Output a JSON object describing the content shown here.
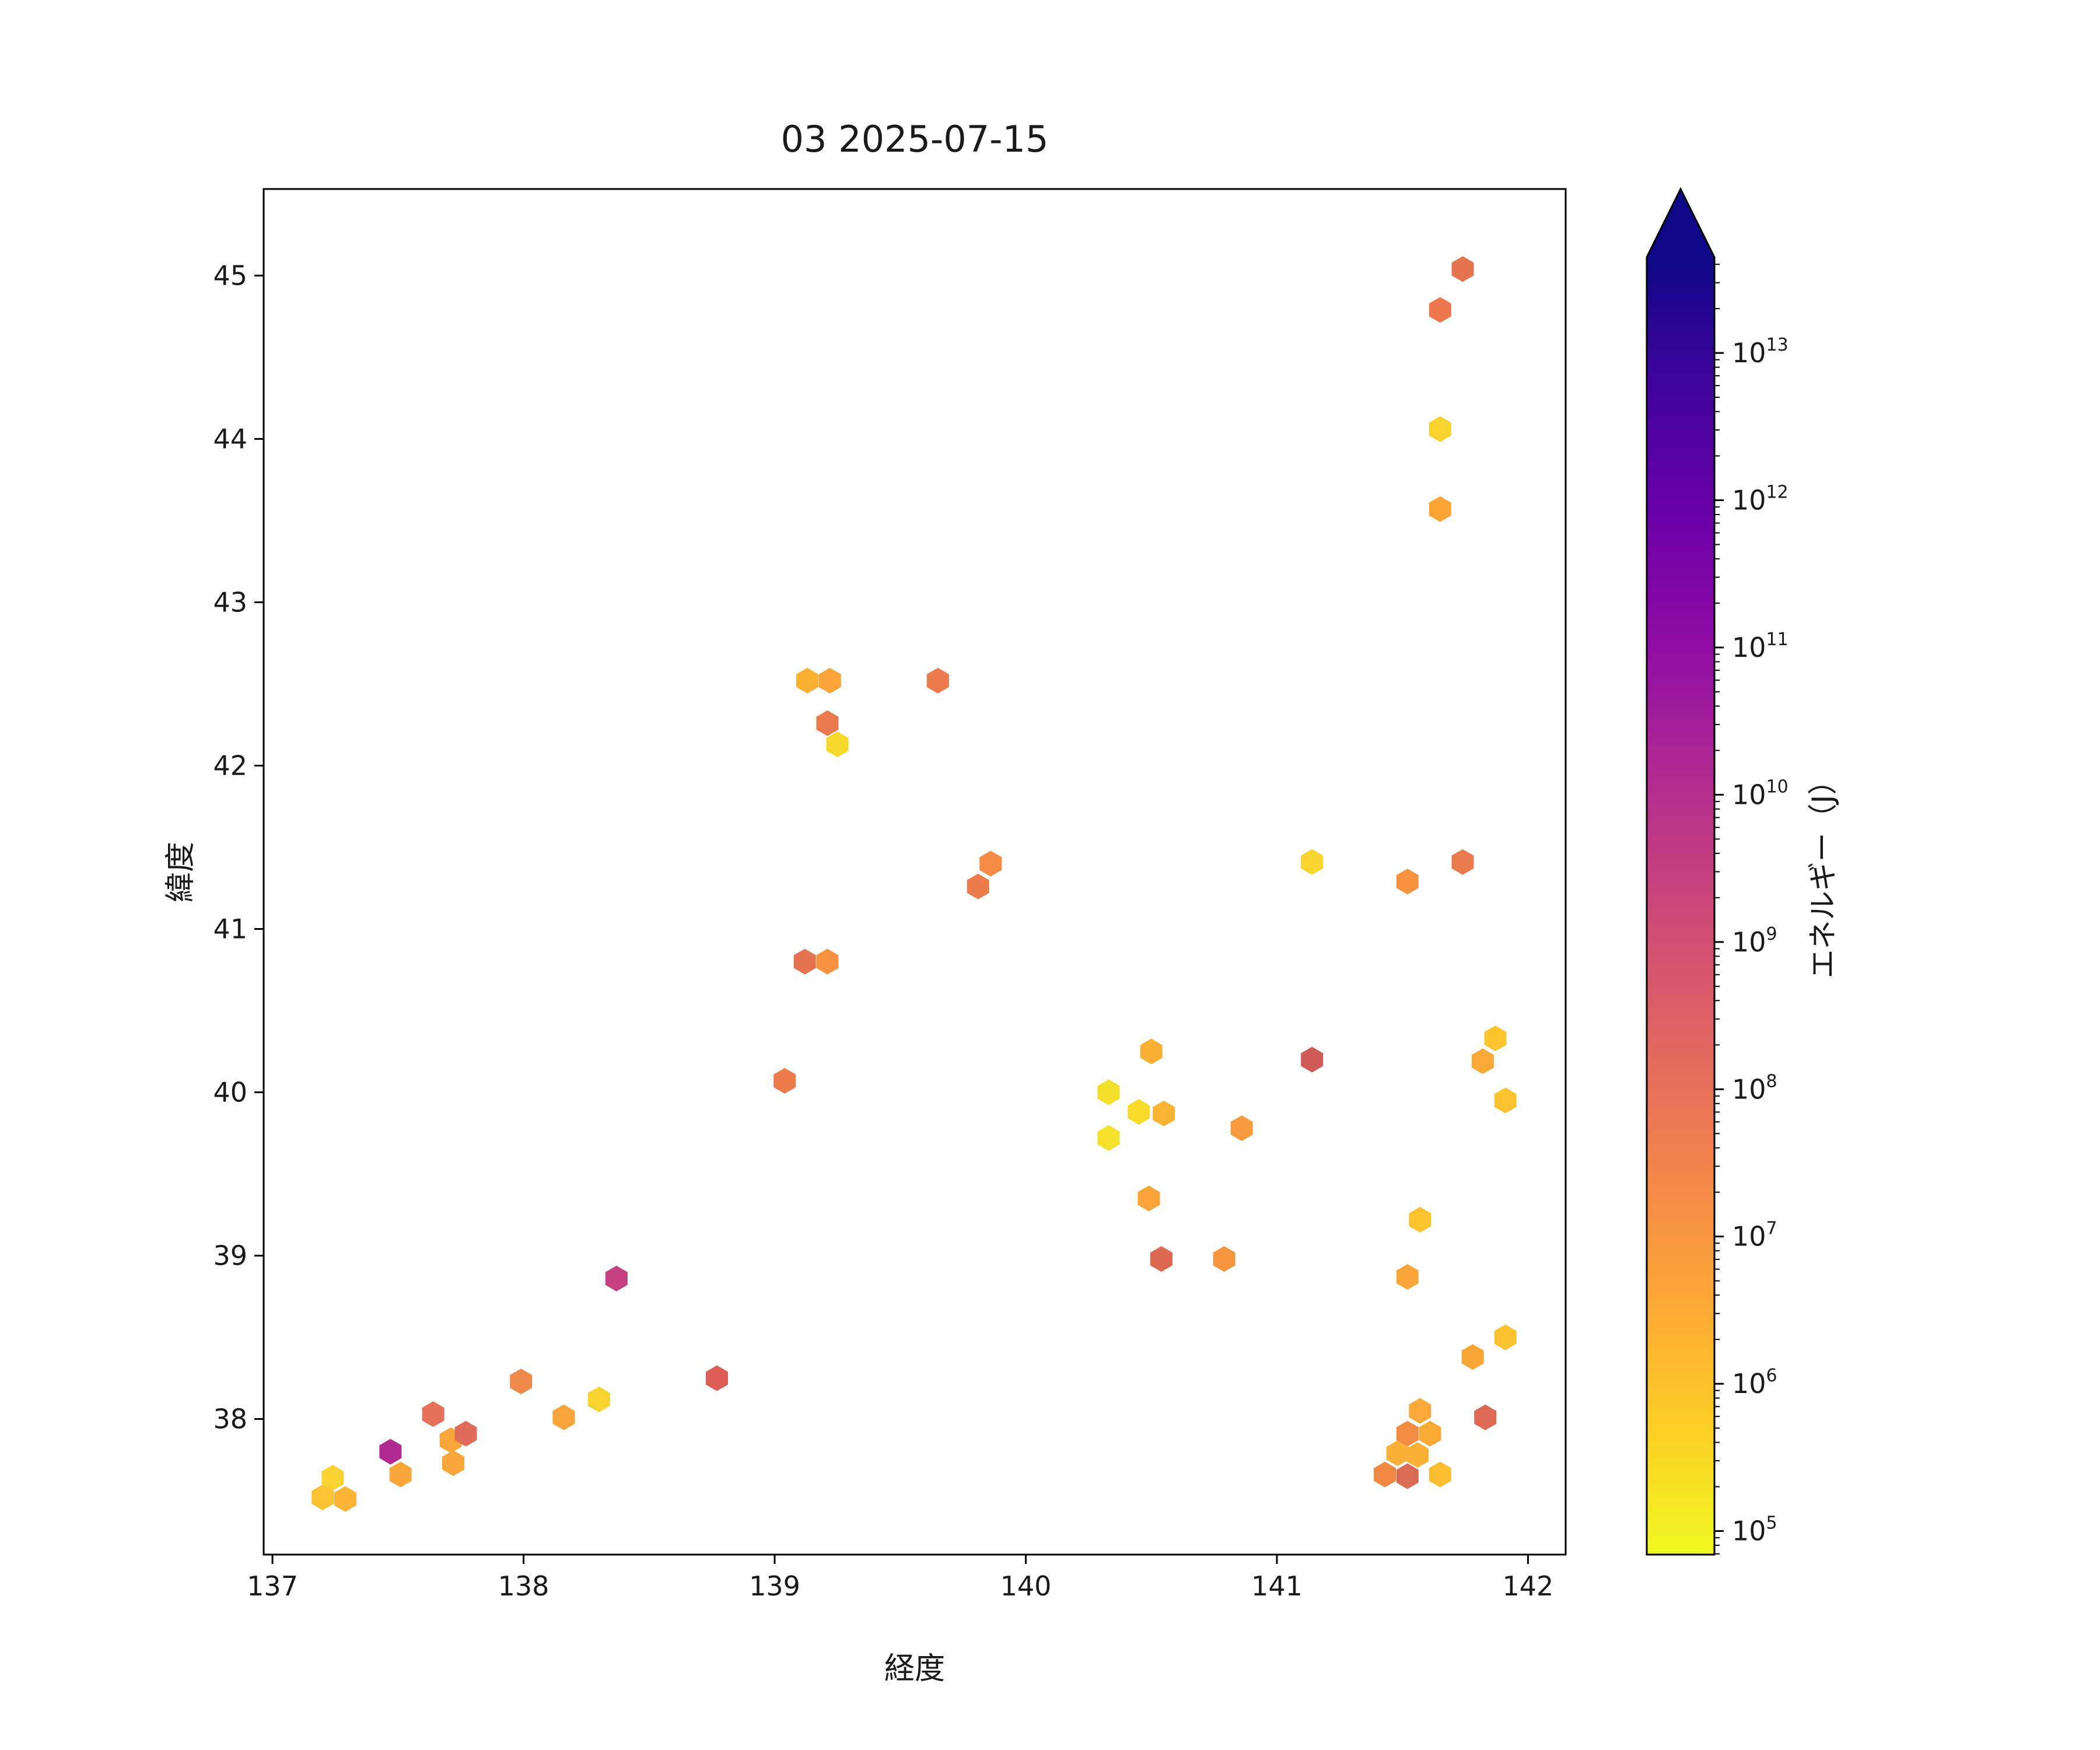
{
  "chart_data": {
    "type": "scatter",
    "subtype": "hexbin",
    "title": "03 2025-07-15",
    "xlabel": "経度",
    "ylabel": "緯度",
    "xlim": [
      136.965,
      142.15
    ],
    "ylim": [
      37.17,
      45.53
    ],
    "xticks": [
      137,
      138,
      139,
      140,
      141,
      142
    ],
    "yticks": [
      38,
      39,
      40,
      41,
      42,
      43,
      44,
      45
    ],
    "grid": false,
    "background": "#ffffff",
    "frame_color": "#000000",
    "points": [
      {
        "lon": 137.2,
        "lat": 37.52,
        "energy_j": 1000000.0,
        "color": "#fbc332"
      },
      {
        "lon": 137.29,
        "lat": 37.51,
        "energy_j": 2500000.0,
        "color": "#fbb435"
      },
      {
        "lon": 137.24,
        "lat": 37.64,
        "energy_j": 500000.0,
        "color": "#f8d231"
      },
      {
        "lon": 137.47,
        "lat": 37.8,
        "energy_j": 13000000000.0,
        "color": "#b02a90"
      },
      {
        "lon": 137.51,
        "lat": 37.66,
        "energy_j": 5000000.0,
        "color": "#f9a63b"
      },
      {
        "lon": 137.64,
        "lat": 38.03,
        "energy_j": 80000000.0,
        "color": "#e4705a"
      },
      {
        "lon": 137.71,
        "lat": 37.87,
        "energy_j": 5000000.0,
        "color": "#f9a63b"
      },
      {
        "lon": 137.77,
        "lat": 37.91,
        "energy_j": 100000000.0,
        "color": "#e06c5a"
      },
      {
        "lon": 137.72,
        "lat": 37.73,
        "energy_j": 5000000.0,
        "color": "#f9a63b"
      },
      {
        "lon": 137.99,
        "lat": 38.23,
        "energy_j": 20000000.0,
        "color": "#f08a4b"
      },
      {
        "lon": 138.16,
        "lat": 38.01,
        "energy_j": 6000000.0,
        "color": "#f8a43c"
      },
      {
        "lon": 138.3,
        "lat": 38.12,
        "energy_j": 500000.0,
        "color": "#f6d32e"
      },
      {
        "lon": 138.37,
        "lat": 38.86,
        "energy_j": 1200000000.0,
        "color": "#c5407e"
      },
      {
        "lon": 138.77,
        "lat": 38.25,
        "energy_j": 200000000.0,
        "color": "#dc5e56"
      },
      {
        "lon": 139.13,
        "lat": 42.52,
        "energy_j": 3000000.0,
        "color": "#fbb032"
      },
      {
        "lon": 139.22,
        "lat": 42.52,
        "energy_j": 5000000.0,
        "color": "#f9a338"
      },
      {
        "lon": 139.65,
        "lat": 42.52,
        "energy_j": 50000000.0,
        "color": "#ed7a4c"
      },
      {
        "lon": 139.21,
        "lat": 42.26,
        "energy_j": 50000000.0,
        "color": "#e87a4d"
      },
      {
        "lon": 139.25,
        "lat": 42.13,
        "energy_j": 400000.0,
        "color": "#f7d92c"
      },
      {
        "lon": 139.86,
        "lat": 41.4,
        "energy_j": 20000000.0,
        "color": "#f58a43"
      },
      {
        "lon": 139.81,
        "lat": 41.26,
        "energy_j": 40000000.0,
        "color": "#ec7c4c"
      },
      {
        "lon": 139.12,
        "lat": 40.8,
        "energy_j": 80000000.0,
        "color": "#e4714f"
      },
      {
        "lon": 139.21,
        "lat": 40.8,
        "energy_j": 15000000.0,
        "color": "#f5913f"
      },
      {
        "lon": 139.04,
        "lat": 40.07,
        "energy_j": 50000000.0,
        "color": "#ee7b4b"
      },
      {
        "lon": 140.5,
        "lat": 40.25,
        "energy_j": 3000000.0,
        "color": "#fbaf33"
      },
      {
        "lon": 140.33,
        "lat": 40.0,
        "energy_j": 200000.0,
        "color": "#f4e02a"
      },
      {
        "lon": 140.45,
        "lat": 39.88,
        "energy_j": 300000.0,
        "color": "#f7dd2a"
      },
      {
        "lon": 140.55,
        "lat": 39.87,
        "energy_j": 2500000.0,
        "color": "#fbb431"
      },
      {
        "lon": 140.33,
        "lat": 39.72,
        "energy_j": 200000.0,
        "color": "#f5e02a"
      },
      {
        "lon": 140.86,
        "lat": 39.78,
        "energy_j": 8000000.0,
        "color": "#f79b3e"
      },
      {
        "lon": 141.14,
        "lat": 41.41,
        "energy_j": 500000.0,
        "color": "#f8d52e"
      },
      {
        "lon": 141.52,
        "lat": 41.29,
        "energy_j": 15000000.0,
        "color": "#f7913e"
      },
      {
        "lon": 141.74,
        "lat": 41.41,
        "energy_j": 40000000.0,
        "color": "#ea7b4e"
      },
      {
        "lon": 141.14,
        "lat": 40.2,
        "energy_j": 250000000.0,
        "color": "#d05a58"
      },
      {
        "lon": 141.87,
        "lat": 40.33,
        "energy_j": 1000000.0,
        "color": "#fcc42d"
      },
      {
        "lon": 141.82,
        "lat": 40.19,
        "energy_j": 4000000.0,
        "color": "#faa836"
      },
      {
        "lon": 141.91,
        "lat": 39.95,
        "energy_j": 1000000.0,
        "color": "#fcc32e"
      },
      {
        "lon": 140.49,
        "lat": 39.35,
        "energy_j": 5000000.0,
        "color": "#faa338"
      },
      {
        "lon": 140.54,
        "lat": 38.98,
        "energy_j": 150000000.0,
        "color": "#dd6851"
      },
      {
        "lon": 140.79,
        "lat": 38.98,
        "energy_j": 12000000.0,
        "color": "#f6953e"
      },
      {
        "lon": 141.57,
        "lat": 39.22,
        "energy_j": 1000000.0,
        "color": "#fcc32e"
      },
      {
        "lon": 141.52,
        "lat": 38.87,
        "energy_j": 4000000.0,
        "color": "#faa639"
      },
      {
        "lon": 141.91,
        "lat": 38.5,
        "energy_j": 1000000.0,
        "color": "#fcc12f"
      },
      {
        "lon": 141.78,
        "lat": 38.38,
        "energy_j": 4000000.0,
        "color": "#faa637"
      },
      {
        "lon": 141.83,
        "lat": 38.01,
        "energy_j": 150000000.0,
        "color": "#dd6853"
      },
      {
        "lon": 141.57,
        "lat": 38.05,
        "energy_j": 4000000.0,
        "color": "#f9a93a"
      },
      {
        "lon": 141.52,
        "lat": 37.91,
        "energy_j": 20000000.0,
        "color": "#f28c42"
      },
      {
        "lon": 141.61,
        "lat": 37.91,
        "energy_j": 3500000.0,
        "color": "#fbab34"
      },
      {
        "lon": 141.48,
        "lat": 37.79,
        "energy_j": 3000000.0,
        "color": "#fbb135"
      },
      {
        "lon": 141.56,
        "lat": 37.78,
        "energy_j": 3000000.0,
        "color": "#fbb135"
      },
      {
        "lon": 141.43,
        "lat": 37.66,
        "energy_j": 25000000.0,
        "color": "#f08844"
      },
      {
        "lon": 141.52,
        "lat": 37.65,
        "energy_j": 120000000.0,
        "color": "#d96a54"
      },
      {
        "lon": 141.65,
        "lat": 37.66,
        "energy_j": 1500000.0,
        "color": "#fcbd31"
      },
      {
        "lon": 141.74,
        "lat": 45.04,
        "energy_j": 70000000.0,
        "color": "#e4734e"
      },
      {
        "lon": 141.65,
        "lat": 44.79,
        "energy_j": 50000000.0,
        "color": "#ed764c"
      },
      {
        "lon": 141.65,
        "lat": 44.06,
        "energy_j": 500000.0,
        "color": "#f8d32d"
      },
      {
        "lon": 141.65,
        "lat": 43.57,
        "energy_j": 4500000.0,
        "color": "#faa534"
      }
    ],
    "colorbar": {
      "label": "エネルギー（J）",
      "scale": "log",
      "min_exp": 4.84,
      "max_exp": 13.65,
      "tick_exponents": [
        5,
        6,
        7,
        8,
        9,
        10,
        11,
        12,
        13
      ],
      "tick_base": "10",
      "extend": "max",
      "extend_color": "#0d0887",
      "gradient_bottom_to_top": [
        "#f0f921",
        "#fcce25",
        "#fca636",
        "#f2844b",
        "#e16462",
        "#cc4778",
        "#b12a90",
        "#8f0da4",
        "#6a00a8",
        "#41049d",
        "#0d0887"
      ]
    }
  }
}
